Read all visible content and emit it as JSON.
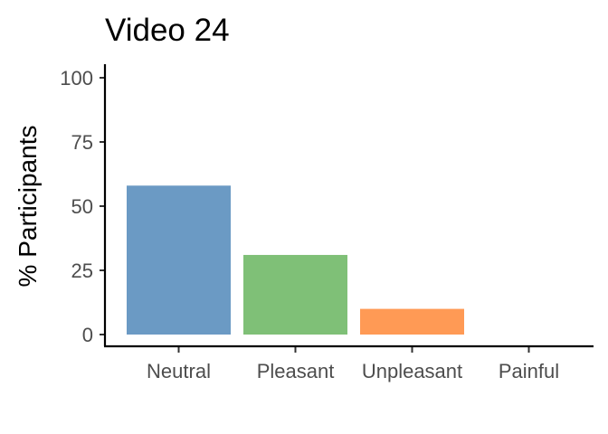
{
  "chart_data": {
    "type": "bar",
    "title": "Video 24",
    "xlabel": "",
    "ylabel": "% Participants",
    "categories": [
      "Neutral",
      "Pleasant",
      "Unpleasant",
      "Painful"
    ],
    "values": [
      58,
      31,
      10,
      0
    ],
    "colors": [
      "#6b9ac4",
      "#7fc077",
      "#ff9a55",
      "#cccccc"
    ],
    "ylim": [
      0,
      100
    ],
    "yticks": [
      0,
      25,
      50,
      75,
      100
    ],
    "ytick_labels": [
      "0",
      "25",
      "50",
      "75",
      "100"
    ],
    "grid": false,
    "legend": "none"
  }
}
